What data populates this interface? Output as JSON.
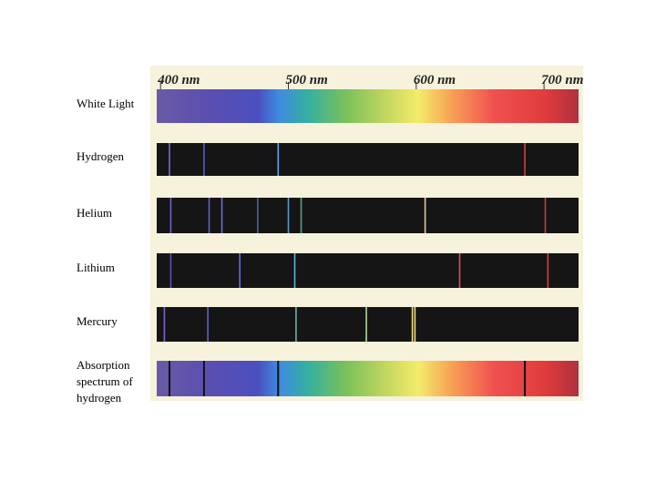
{
  "scale": {
    "lim": [
      397,
      727
    ],
    "ticks": [
      {
        "value": 400,
        "label": "400 nm"
      },
      {
        "value": 500,
        "label": "500 nm"
      },
      {
        "value": 600,
        "label": "600 nm"
      },
      {
        "value": 700,
        "label": "700 nm"
      }
    ]
  },
  "rows": [
    {
      "label": "White Light",
      "kind": "continuous",
      "lines": []
    },
    {
      "label": "Hydrogen",
      "kind": "emission",
      "lines": [
        {
          "nm": 407,
          "color": "#7a6ad8"
        },
        {
          "nm": 434,
          "color": "#5a5ac8"
        },
        {
          "nm": 492,
          "color": "#5aa8e8"
        },
        {
          "nm": 685,
          "color": "#d04040"
        }
      ]
    },
    {
      "label": "Helium",
      "kind": "emission",
      "lines": [
        {
          "nm": 408,
          "color": "#7060c8"
        },
        {
          "nm": 438,
          "color": "#6060c0"
        },
        {
          "nm": 448,
          "color": "#7070d8"
        },
        {
          "nm": 476,
          "color": "#5060a0"
        },
        {
          "nm": 500,
          "color": "#5aa0c8"
        },
        {
          "nm": 510,
          "color": "#60a080"
        },
        {
          "nm": 607,
          "color": "#e8c8a0"
        },
        {
          "nm": 701,
          "color": "#c04040"
        }
      ]
    },
    {
      "label": "Lithium",
      "kind": "emission",
      "lines": [
        {
          "nm": 408,
          "color": "#6050b0"
        },
        {
          "nm": 462,
          "color": "#6070d8"
        },
        {
          "nm": 505,
          "color": "#60b0d0"
        },
        {
          "nm": 634,
          "color": "#e05050"
        },
        {
          "nm": 703,
          "color": "#d04040"
        }
      ]
    },
    {
      "label": "Mercury",
      "kind": "emission",
      "lines": [
        {
          "nm": 403,
          "color": "#8060c8"
        },
        {
          "nm": 437,
          "color": "#6060c8"
        },
        {
          "nm": 506,
          "color": "#70b0a0"
        },
        {
          "nm": 561,
          "color": "#b0d8a0"
        },
        {
          "nm": 597,
          "color": "#f0e080"
        },
        {
          "nm": 599,
          "color": "#f0e080"
        }
      ]
    },
    {
      "label": "Absorption spectrum of hydrogen",
      "kind": "absorption",
      "lines": [
        {
          "nm": 407,
          "color": "#111111"
        },
        {
          "nm": 434,
          "color": "#111111"
        },
        {
          "nm": 492,
          "color": "#111111"
        },
        {
          "nm": 685,
          "color": "#111111"
        }
      ]
    }
  ]
}
